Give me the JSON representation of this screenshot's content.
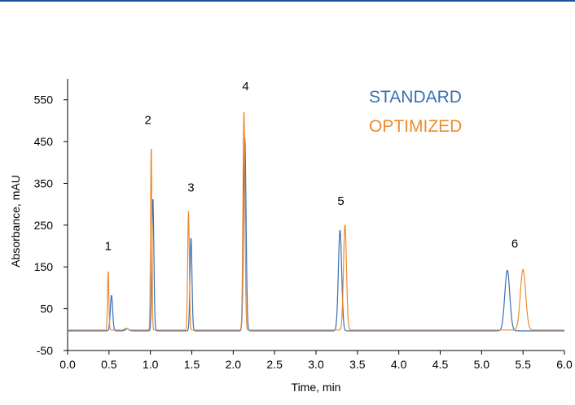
{
  "chart_data": {
    "type": "line",
    "title": "",
    "xlabel": "Time, min",
    "ylabel": "Absorbance, mAU",
    "xlim": [
      0.0,
      6.0
    ],
    "ylim": [
      -50,
      600
    ],
    "x_ticks": [
      "0.0",
      "0.5",
      "1.0",
      "1.5",
      "2.0",
      "2.5",
      "3.0",
      "3.5",
      "4.0",
      "4.5",
      "5.0",
      "5.5",
      "6.0"
    ],
    "y_ticks": [
      "-50",
      "50",
      "150",
      "250",
      "350",
      "450",
      "550"
    ],
    "grid": false,
    "legend": {
      "placement": "top-right",
      "style": "colored-text"
    },
    "series": [
      {
        "name": "STANDARD",
        "color": "#3a6fb5",
        "baseline": -3,
        "peaks": [
          {
            "t": 0.53,
            "h": 85,
            "w": 0.014
          },
          {
            "t": 0.72,
            "h": 5,
            "w": 0.02
          },
          {
            "t": 1.03,
            "h": 318,
            "w": 0.012
          },
          {
            "t": 1.49,
            "h": 224,
            "w": 0.012
          },
          {
            "t": 2.14,
            "h": 463,
            "w": 0.015
          },
          {
            "t": 3.29,
            "h": 241,
            "w": 0.02
          },
          {
            "t": 5.31,
            "h": 145,
            "w": 0.03
          }
        ]
      },
      {
        "name": "OPTIMIZED",
        "color": "#ed8a2e",
        "baseline": -1,
        "peaks": [
          {
            "t": 0.49,
            "h": 143,
            "w": 0.008
          },
          {
            "t": 0.71,
            "h": 4,
            "w": 0.02
          },
          {
            "t": 1.01,
            "h": 446,
            "w": 0.008
          },
          {
            "t": 1.46,
            "h": 285,
            "w": 0.01
          },
          {
            "t": 2.13,
            "h": 527,
            "w": 0.012
          },
          {
            "t": 3.35,
            "h": 252,
            "w": 0.018
          },
          {
            "t": 5.5,
            "h": 145,
            "w": 0.032
          }
        ]
      }
    ],
    "annotations": [
      {
        "text": "1",
        "x": 0.49,
        "y": 190
      },
      {
        "text": "2",
        "x": 0.97,
        "y": 492
      },
      {
        "text": "3",
        "x": 1.49,
        "y": 330
      },
      {
        "text": "4",
        "x": 2.15,
        "y": 573
      },
      {
        "text": "5",
        "x": 3.3,
        "y": 298
      },
      {
        "text": "6",
        "x": 5.4,
        "y": 196
      }
    ]
  }
}
